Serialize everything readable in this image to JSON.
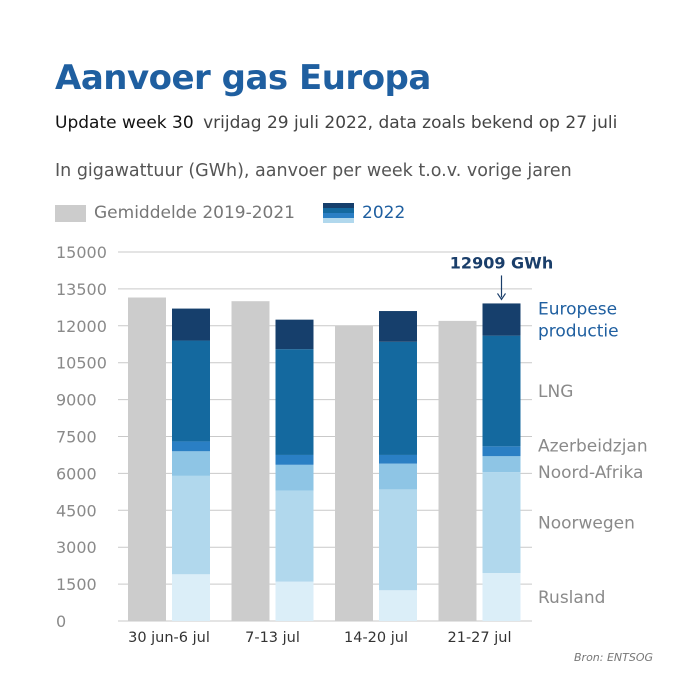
{
  "title": "Aanvoer gas Europa",
  "update": {
    "label": "Update week 30",
    "detail": "vrijdag 29 juli 2022, data zoals bekend op 27 juli"
  },
  "subtitle": "In gigawattuur (GWh), aanvoer per week t.o.v. vorige jaren",
  "legend": {
    "average": "Gemiddelde 2019-2021",
    "current": "2022"
  },
  "source": "Bron: ENTSOG",
  "colors": {
    "average": "#cccccc",
    "Rusland": "#dbeef8",
    "Noorwegen": "#b1d8ed",
    "Noord-Afrika": "#8ec5e5",
    "Azerbeidzjan": "#2a7fc4",
    "LNG": "#14699f",
    "Europese productie": "#163f6c",
    "accent": "#1f5fa0"
  },
  "chart_data": {
    "type": "bar",
    "stacked": true,
    "categories": [
      "30 jun-6 jul",
      "7-13 jul",
      "14-20 jul",
      "21-27 jul"
    ],
    "ylim": [
      0,
      15000
    ],
    "yticks": [
      "0",
      "1500",
      "3000",
      "4500",
      "6000",
      "7500",
      "9000",
      "10500",
      "12000",
      "13500",
      "15000"
    ],
    "grid": true,
    "average": {
      "name": "Gemiddelde 2019-2021",
      "values": [
        13150,
        13000,
        12000,
        12200
      ]
    },
    "series": [
      {
        "name": "Rusland",
        "values": [
          1900,
          1600,
          1250,
          1950
        ]
      },
      {
        "name": "Noorwegen",
        "values": [
          4000,
          3700,
          4100,
          4100
        ]
      },
      {
        "name": "Noord-Afrika",
        "values": [
          1000,
          1050,
          1050,
          650
        ]
      },
      {
        "name": "Azerbeidzjan",
        "values": [
          400,
          400,
          350,
          400
        ]
      },
      {
        "name": "LNG",
        "values": [
          4100,
          4300,
          4600,
          4500
        ]
      },
      {
        "name": "Europese productie",
        "values": [
          1300,
          1200,
          1250,
          1309
        ]
      }
    ],
    "segment_labels": [
      {
        "series": "Europese productie",
        "lines": [
          "Europese",
          "productie"
        ]
      },
      {
        "series": "LNG",
        "lines": [
          "LNG"
        ]
      },
      {
        "series": "Azerbeidzjan",
        "lines": [
          "Azerbeidzjan"
        ]
      },
      {
        "series": "Noord-Afrika",
        "lines": [
          "Noord-Afrika"
        ]
      },
      {
        "series": "Noorwegen",
        "lines": [
          "Noorwegen"
        ]
      },
      {
        "series": "Rusland",
        "lines": [
          "Rusland"
        ]
      }
    ],
    "annotation": {
      "text": "12909 GWh",
      "category": "21-27 jul",
      "value": 12909
    }
  }
}
